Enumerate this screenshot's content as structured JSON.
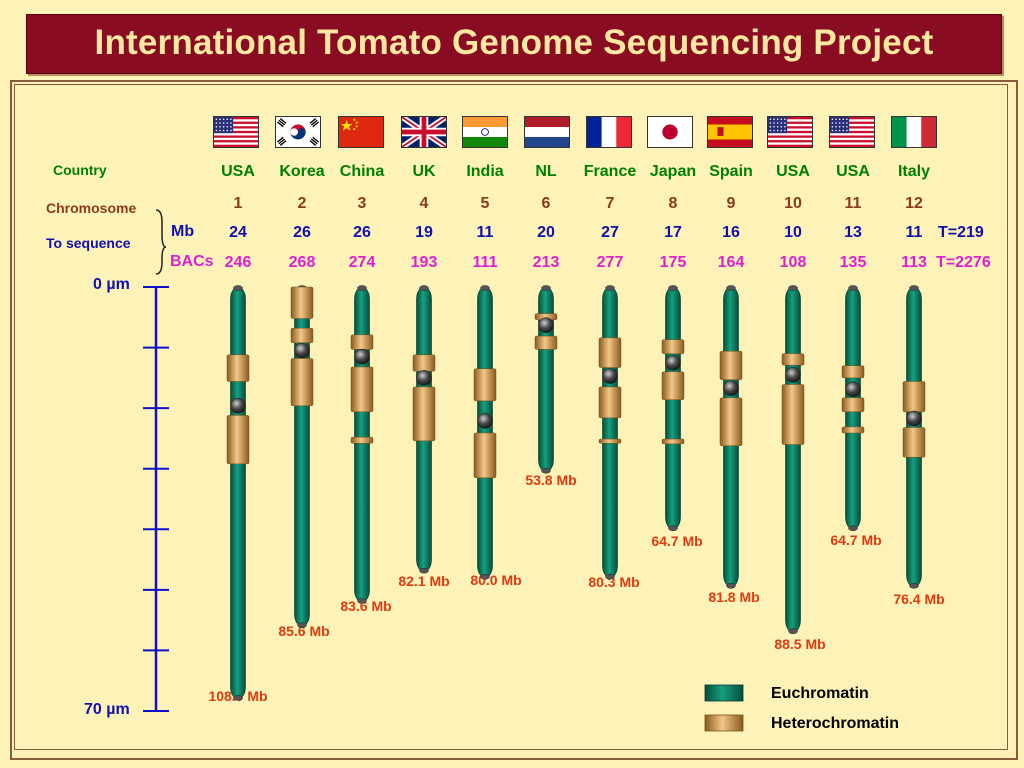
{
  "title": "International Tomato Genome Sequencing Project",
  "row_labels": {
    "country": "Country",
    "chromosome": "Chromosome",
    "to_sequence": "To sequence",
    "mb": "Mb",
    "bacs": "BACs"
  },
  "scale": {
    "top_label": "0 µm",
    "bottom_label": "70 µm",
    "max_um": 70,
    "tick_step_um": 10
  },
  "chromosomes": [
    {
      "country": "USA",
      "flag": "usa",
      "number": "1",
      "mb": "24",
      "bacs": "246",
      "size_label": "108.0 Mb",
      "length_um": 68.0,
      "centromere_um": 19.6,
      "heterochromatin": [
        [
          11.2,
          15.6
        ],
        [
          21.2,
          29.2
        ]
      ]
    },
    {
      "country": "Korea",
      "flag": "korea",
      "number": "2",
      "mb": "26",
      "bacs": "268",
      "size_label": "85.6 Mb",
      "length_um": 56.0,
      "centromere_um": 10.5,
      "heterochromatin": [
        [
          0.0,
          5.2
        ],
        [
          6.8,
          9.2
        ],
        [
          11.8,
          19.6
        ]
      ]
    },
    {
      "country": "China",
      "flag": "china",
      "number": "3",
      "mb": "26",
      "bacs": "274",
      "size_label": "83.6 Mb",
      "length_um": 52.0,
      "centromere_um": 11.5,
      "heterochromatin": [
        [
          7.9,
          10.3
        ],
        [
          13.2,
          20.6
        ],
        [
          24.8,
          25.8
        ]
      ]
    },
    {
      "country": "UK",
      "flag": "uk",
      "number": "4",
      "mb": "19",
      "bacs": "193",
      "size_label": "82.1 Mb",
      "length_um": 47.0,
      "centromere_um": 15.0,
      "heterochromatin": [
        [
          11.2,
          13.9
        ],
        [
          16.5,
          25.4
        ]
      ]
    },
    {
      "country": "India",
      "flag": "india",
      "number": "5",
      "mb": "11",
      "bacs": "111",
      "size_label": "80.0 Mb",
      "length_um": 48.0,
      "centromere_um": 22.1,
      "heterochromatin": [
        [
          13.5,
          18.8
        ],
        [
          24.1,
          31.5
        ]
      ]
    },
    {
      "country": "NL",
      "flag": "nl",
      "number": "6",
      "mb": "20",
      "bacs": "213",
      "size_label": "53.8 Mb",
      "length_um": 30.5,
      "centromere_um": 6.3,
      "heterochromatin": [
        [
          4.4,
          5.4
        ],
        [
          8.1,
          10.3
        ]
      ]
    },
    {
      "country": "France",
      "flag": "france",
      "number": "7",
      "mb": "27",
      "bacs": "277",
      "size_label": "80.3 Mb",
      "length_um": 48.0,
      "centromere_um": 14.7,
      "heterochromatin": [
        [
          8.4,
          13.3
        ],
        [
          16.5,
          21.6
        ],
        [
          25.1,
          25.8
        ]
      ]
    },
    {
      "country": "Japan",
      "flag": "japan",
      "number": "8",
      "mb": "17",
      "bacs": "175",
      "size_label": "64.7 Mb",
      "length_um": 40.0,
      "centromere_um": 12.5,
      "heterochromatin": [
        [
          8.7,
          11.0
        ],
        [
          14.0,
          18.6
        ],
        [
          25.1,
          25.9
        ]
      ]
    },
    {
      "country": "Spain",
      "flag": "spain",
      "number": "9",
      "mb": "16",
      "bacs": "164",
      "size_label": "81.8 Mb",
      "length_um": 49.5,
      "centromere_um": 16.7,
      "heterochromatin": [
        [
          10.6,
          15.3
        ],
        [
          18.3,
          26.2
        ]
      ]
    },
    {
      "country": "USA",
      "flag": "usa",
      "number": "10",
      "mb": "10",
      "bacs": "108",
      "size_label": "88.5 Mb",
      "length_um": 57.0,
      "centromere_um": 14.5,
      "heterochromatin": [
        [
          11.0,
          12.9
        ],
        [
          16.1,
          26.0
        ]
      ]
    },
    {
      "country": "USA",
      "flag": "usa",
      "number": "11",
      "mb": "13",
      "bacs": "135",
      "size_label": "64.7 Mb",
      "length_um": 40.0,
      "centromere_um": 16.9,
      "heterochromatin": [
        [
          13.0,
          15.0
        ],
        [
          18.3,
          20.6
        ],
        [
          23.1,
          24.1
        ]
      ]
    },
    {
      "country": "Italy",
      "flag": "italy",
      "number": "12",
      "mb": "11",
      "bacs": "113",
      "size_label": "76.4 Mb",
      "length_um": 49.5,
      "centromere_um": 21.7,
      "heterochromatin": [
        [
          15.6,
          20.6
        ],
        [
          23.2,
          28.1
        ]
      ]
    }
  ],
  "totals": {
    "mb": "T=219",
    "bacs": "T=2276"
  },
  "legend": [
    {
      "label": "Euchromatin",
      "color": "#0e8a6e"
    },
    {
      "label": "Heterochromatin",
      "color": "#d9a85a"
    }
  ],
  "colors": {
    "euchromatin": "#0e8a6e",
    "heterochromatin": "#d9a85a",
    "centromere": "#3a3a3a",
    "scale": "#1010d0",
    "title_bg": "#8a0c22",
    "title_text": "#fce8a0",
    "background": "#fdf3b8"
  }
}
